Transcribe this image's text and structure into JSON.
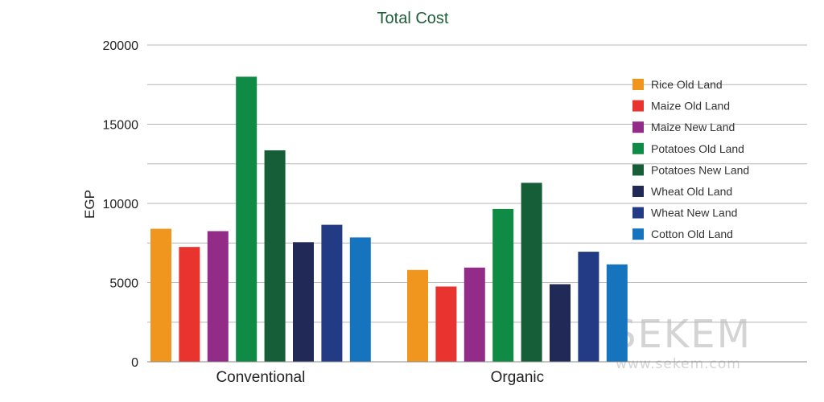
{
  "watermark": {
    "brand": "SEKEM",
    "url": "www.sekem.com"
  },
  "chart_data": {
    "type": "bar",
    "title": "Total Cost",
    "xlabel": "",
    "ylabel": "EGP",
    "ylim": [
      0,
      20000
    ],
    "yticks": [
      0,
      5000,
      10000,
      15000,
      20000
    ],
    "gridlines": [
      2500,
      5000,
      7500,
      10000,
      12500,
      15000,
      17500,
      20000
    ],
    "grid": true,
    "legend_position": "right",
    "categories": [
      "Conventional",
      "Organic"
    ],
    "series": [
      {
        "name": "Rice Old Land",
        "color": "#f0961e",
        "values": [
          8400,
          5800
        ]
      },
      {
        "name": "Maize Old Land",
        "color": "#e8332e",
        "values": [
          7250,
          4750
        ]
      },
      {
        "name": "Maize New Land",
        "color": "#922c88",
        "values": [
          8250,
          5950
        ]
      },
      {
        "name": "Potatoes Old Land",
        "color": "#0f8b45",
        "values": [
          18000,
          9650
        ]
      },
      {
        "name": "Potatoes New Land",
        "color": "#155e37",
        "values": [
          13350,
          11300
        ]
      },
      {
        "name": "Wheat Old Land",
        "color": "#212957",
        "values": [
          7550,
          4900
        ]
      },
      {
        "name": "Wheat New Land",
        "color": "#233a85",
        "values": [
          8650,
          6950
        ]
      },
      {
        "name": "Cotton Old Land",
        "color": "#1574bd",
        "values": [
          7850,
          6150
        ]
      }
    ]
  }
}
